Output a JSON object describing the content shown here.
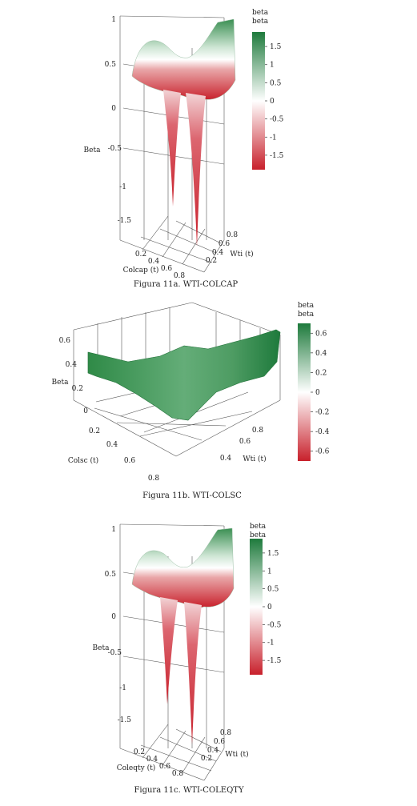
{
  "chart_data": [
    {
      "type": "surface",
      "caption": "Figura 11a. WTI-COLCAP",
      "zlabel": "Beta",
      "xlabel": "Colcap (t)",
      "ylabel": "Wti (t)",
      "z_ticks": [
        "1",
        "0.5",
        "0",
        "-0.5",
        "-1",
        "-1.5"
      ],
      "x_ticks": [
        "0.2",
        "0.4",
        "0.6",
        "0.8"
      ],
      "y_ticks": [
        "0.8",
        "0.6",
        "0.4",
        "0.2"
      ],
      "zlim": [
        -1.8,
        1
      ],
      "colorbar": {
        "title": [
          "beta",
          "beta"
        ],
        "ticks": [
          "1.5",
          "1",
          "0.5",
          "0",
          "-0.5",
          "-1",
          "-1.5"
        ],
        "range": [
          -1.9,
          1.9
        ],
        "colors": [
          "#c8202b",
          "#ffffff",
          "#1e7a3c"
        ]
      }
    },
    {
      "type": "surface",
      "caption": "Figura 11b. WTI-COLSC",
      "zlabel": "Beta",
      "xlabel": "Colsc (t)",
      "ylabel": "Wti (t)",
      "z_ticks": [
        "0.6",
        "0.4",
        "0.2",
        "0"
      ],
      "x_ticks": [
        "0.2",
        "0.4",
        "0.6",
        "0.8"
      ],
      "y_ticks": [
        "0.8",
        "0.6",
        "0.4"
      ],
      "zlim": [
        0,
        0.7
      ],
      "colorbar": {
        "title": [
          "beta",
          "beta"
        ],
        "ticks": [
          "0.6",
          "0.4",
          "0.2",
          "0",
          "-0.2",
          "-0.4",
          "-0.6"
        ],
        "range": [
          -0.7,
          0.7
        ],
        "colors": [
          "#c8202b",
          "#ffffff",
          "#1e7a3c"
        ]
      }
    },
    {
      "type": "surface",
      "caption": "Figura 11c. WTI-COLEQTY",
      "zlabel": "Beta",
      "xlabel": "Coleqty (t)",
      "ylabel": "Wti (t)",
      "z_ticks": [
        "1",
        "0.5",
        "0",
        "-0.5",
        "-1",
        "-1.5"
      ],
      "x_ticks": [
        "0.2",
        "0.4",
        "0.6",
        "0.8"
      ],
      "y_ticks": [
        "0.8",
        "0.6",
        "0.4",
        "0.2"
      ],
      "zlim": [
        -1.8,
        1
      ],
      "colorbar": {
        "title": [
          "beta",
          "beta"
        ],
        "ticks": [
          "1.5",
          "1",
          "0.5",
          "0",
          "-0.5",
          "-1",
          "-1.5"
        ],
        "range": [
          -1.9,
          1.9
        ],
        "colors": [
          "#c8202b",
          "#ffffff",
          "#1e7a3c"
        ]
      }
    }
  ]
}
